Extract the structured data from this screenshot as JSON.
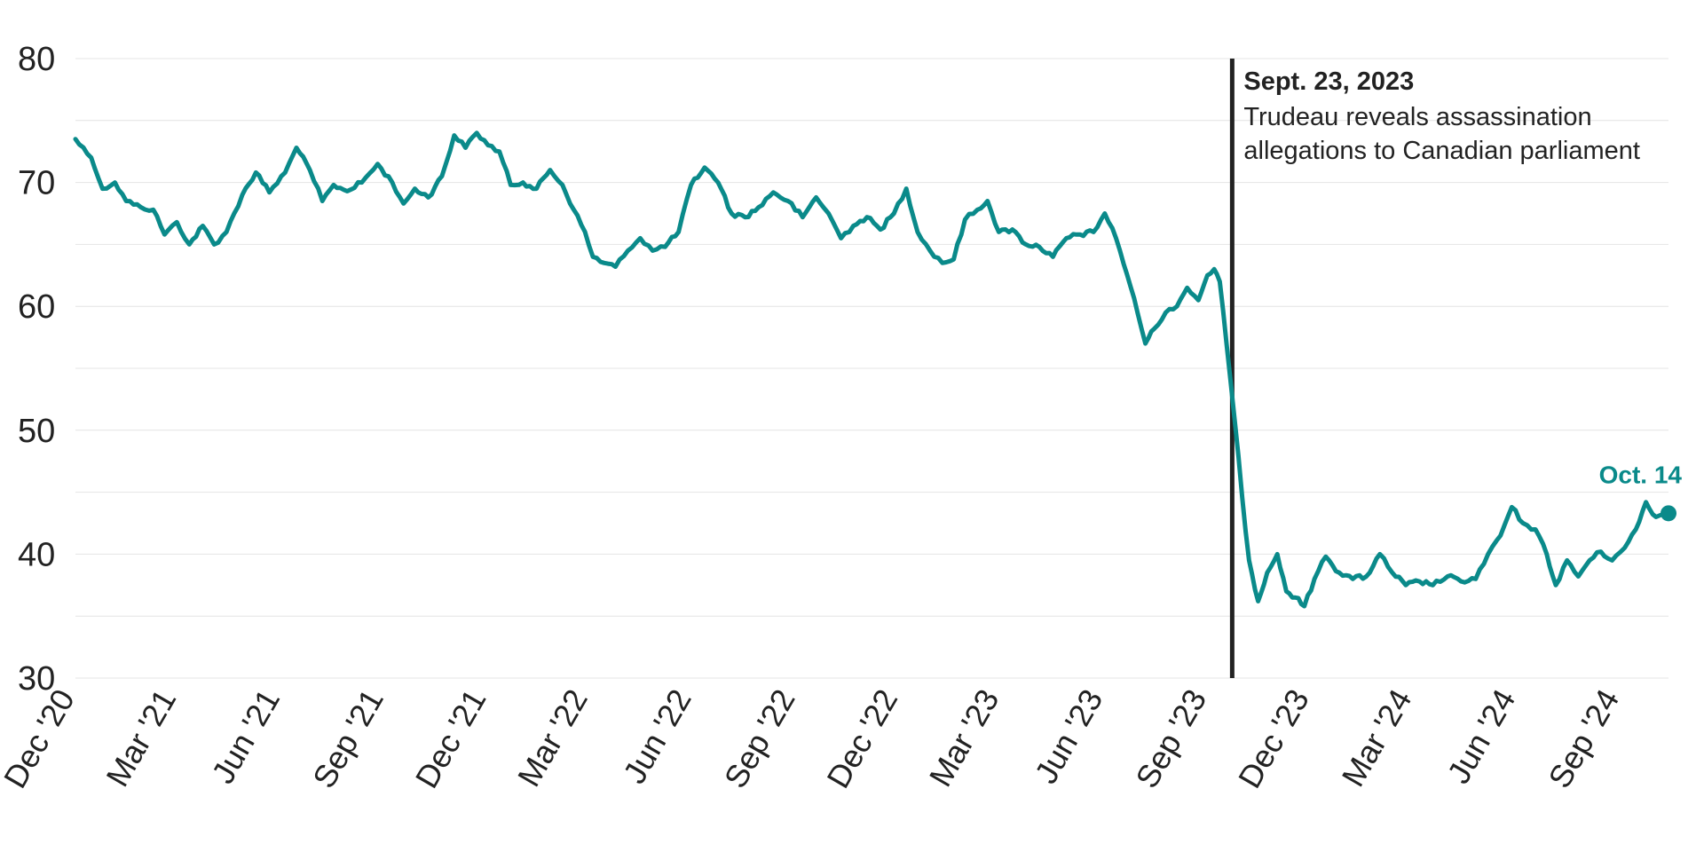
{
  "chart_data": {
    "type": "line",
    "title": "",
    "xlabel": "",
    "ylabel": "",
    "ylim": [
      30,
      80
    ],
    "yticks": [
      30,
      40,
      50,
      60,
      70,
      80
    ],
    "grid": true,
    "line_color": "#0a8a8a",
    "marker_color": "#222222",
    "x_tick_labels": [
      {
        "date": "2020-12-01",
        "label": "Dec '20"
      },
      {
        "date": "2021-03-01",
        "label": "Mar '21"
      },
      {
        "date": "2021-06-01",
        "label": "Jun '21"
      },
      {
        "date": "2021-09-01",
        "label": "Sep '21"
      },
      {
        "date": "2021-12-01",
        "label": "Dec '21"
      },
      {
        "date": "2022-03-01",
        "label": "Mar '22"
      },
      {
        "date": "2022-06-01",
        "label": "Jun '22"
      },
      {
        "date": "2022-09-01",
        "label": "Sep '22"
      },
      {
        "date": "2022-12-01",
        "label": "Dec '22"
      },
      {
        "date": "2023-03-01",
        "label": "Mar '23"
      },
      {
        "date": "2023-06-01",
        "label": "Jun '23"
      },
      {
        "date": "2023-09-01",
        "label": "Sep '23"
      },
      {
        "date": "2023-12-01",
        "label": "Dec '23"
      },
      {
        "date": "2024-03-01",
        "label": "Mar '24"
      },
      {
        "date": "2024-06-01",
        "label": "Jun '24"
      },
      {
        "date": "2024-09-01",
        "label": "Sep '24"
      }
    ],
    "annotation": {
      "date": "2023-09-23",
      "title": "Sept. 23, 2023",
      "lines": [
        "Trudeau reveals assassination",
        "allegations to Canadian parliament"
      ]
    },
    "end_label": {
      "date": "2024-10-14",
      "text": "Oct. 14",
      "value": 43.3
    },
    "series": [
      {
        "points": [
          [
            "2020-12-01",
            73.5
          ],
          [
            "2020-12-15",
            72.0
          ],
          [
            "2020-12-25",
            69.5
          ],
          [
            "2021-01-05",
            70.0
          ],
          [
            "2021-01-15",
            68.5
          ],
          [
            "2021-01-28",
            68.0
          ],
          [
            "2021-02-08",
            67.8
          ],
          [
            "2021-02-18",
            65.8
          ],
          [
            "2021-03-01",
            66.8
          ],
          [
            "2021-03-12",
            65.0
          ],
          [
            "2021-03-24",
            66.5
          ],
          [
            "2021-04-03",
            65.0
          ],
          [
            "2021-04-14",
            66.0
          ],
          [
            "2021-04-28",
            69.0
          ],
          [
            "2021-05-10",
            70.8
          ],
          [
            "2021-05-22",
            69.2
          ],
          [
            "2021-06-05",
            70.8
          ],
          [
            "2021-06-15",
            72.8
          ],
          [
            "2021-06-27",
            71.0
          ],
          [
            "2021-07-08",
            68.5
          ],
          [
            "2021-07-18",
            69.8
          ],
          [
            "2021-07-30",
            69.3
          ],
          [
            "2021-08-12",
            70.0
          ],
          [
            "2021-08-26",
            71.5
          ],
          [
            "2021-09-08",
            70.0
          ],
          [
            "2021-09-18",
            68.3
          ],
          [
            "2021-09-28",
            69.5
          ],
          [
            "2021-10-10",
            68.8
          ],
          [
            "2021-10-22",
            70.5
          ],
          [
            "2021-11-02",
            73.8
          ],
          [
            "2021-11-12",
            72.8
          ],
          [
            "2021-11-22",
            74.0
          ],
          [
            "2021-12-02",
            73.0
          ],
          [
            "2021-12-12",
            72.5
          ],
          [
            "2021-12-22",
            69.8
          ],
          [
            "2022-01-02",
            70.0
          ],
          [
            "2022-01-14",
            69.5
          ],
          [
            "2022-01-26",
            71.0
          ],
          [
            "2022-02-06",
            69.8
          ],
          [
            "2022-02-16",
            67.8
          ],
          [
            "2022-02-26",
            66.0
          ],
          [
            "2022-03-05",
            64.0
          ],
          [
            "2022-03-15",
            63.5
          ],
          [
            "2022-03-25",
            63.2
          ],
          [
            "2022-04-05",
            64.5
          ],
          [
            "2022-04-16",
            65.5
          ],
          [
            "2022-04-27",
            64.5
          ],
          [
            "2022-05-08",
            64.8
          ],
          [
            "2022-05-20",
            66.0
          ],
          [
            "2022-05-31",
            69.8
          ],
          [
            "2022-06-12",
            71.2
          ],
          [
            "2022-06-24",
            70.0
          ],
          [
            "2022-07-06",
            67.5
          ],
          [
            "2022-07-18",
            67.2
          ],
          [
            "2022-07-30",
            68.0
          ],
          [
            "2022-08-12",
            69.2
          ],
          [
            "2022-08-25",
            68.5
          ],
          [
            "2022-09-07",
            67.2
          ],
          [
            "2022-09-19",
            68.8
          ],
          [
            "2022-09-30",
            67.5
          ],
          [
            "2022-10-11",
            65.5
          ],
          [
            "2022-10-22",
            66.5
          ],
          [
            "2022-11-03",
            67.2
          ],
          [
            "2022-11-15",
            66.2
          ],
          [
            "2022-11-27",
            67.5
          ],
          [
            "2022-12-08",
            69.5
          ],
          [
            "2022-12-18",
            66.0
          ],
          [
            "2022-12-29",
            64.5
          ],
          [
            "2023-01-09",
            63.5
          ],
          [
            "2023-01-19",
            63.8
          ],
          [
            "2023-01-29",
            67.0
          ],
          [
            "2023-02-09",
            67.8
          ],
          [
            "2023-02-18",
            68.5
          ],
          [
            "2023-02-28",
            66.0
          ],
          [
            "2023-03-12",
            66.2
          ],
          [
            "2023-03-24",
            65.0
          ],
          [
            "2023-04-05",
            64.8
          ],
          [
            "2023-04-17",
            64.0
          ],
          [
            "2023-04-29",
            65.5
          ],
          [
            "2023-05-11",
            65.8
          ],
          [
            "2023-05-23",
            66.0
          ],
          [
            "2023-06-02",
            67.5
          ],
          [
            "2023-06-12",
            65.5
          ],
          [
            "2023-06-22",
            62.5
          ],
          [
            "2023-07-01",
            59.5
          ],
          [
            "2023-07-08",
            57.0
          ],
          [
            "2023-07-16",
            58.2
          ],
          [
            "2023-07-26",
            59.5
          ],
          [
            "2023-08-05",
            60.0
          ],
          [
            "2023-08-14",
            61.5
          ],
          [
            "2023-08-24",
            60.5
          ],
          [
            "2023-09-01",
            62.5
          ],
          [
            "2023-09-07",
            63.0
          ],
          [
            "2023-09-12",
            62.0
          ],
          [
            "2023-09-18",
            57.0
          ],
          [
            "2023-09-25",
            51.0
          ],
          [
            "2023-10-02",
            44.5
          ],
          [
            "2023-10-08",
            39.5
          ],
          [
            "2023-10-16",
            36.2
          ],
          [
            "2023-10-24",
            38.5
          ],
          [
            "2023-11-02",
            40.0
          ],
          [
            "2023-11-10",
            37.0
          ],
          [
            "2023-11-18",
            36.5
          ],
          [
            "2023-11-26",
            35.8
          ],
          [
            "2023-12-05",
            38.0
          ],
          [
            "2023-12-15",
            39.8
          ],
          [
            "2023-12-27",
            38.5
          ],
          [
            "2024-01-08",
            38.0
          ],
          [
            "2024-01-20",
            38.2
          ],
          [
            "2024-02-01",
            40.0
          ],
          [
            "2024-02-12",
            38.5
          ],
          [
            "2024-02-24",
            37.5
          ],
          [
            "2024-03-07",
            37.8
          ],
          [
            "2024-03-19",
            37.5
          ],
          [
            "2024-04-01",
            38.2
          ],
          [
            "2024-04-13",
            37.8
          ],
          [
            "2024-04-26",
            38.0
          ],
          [
            "2024-05-07",
            40.0
          ],
          [
            "2024-05-18",
            41.5
          ],
          [
            "2024-05-28",
            43.8
          ],
          [
            "2024-06-07",
            42.5
          ],
          [
            "2024-06-18",
            42.0
          ],
          [
            "2024-06-28",
            40.0
          ],
          [
            "2024-07-06",
            37.5
          ],
          [
            "2024-07-16",
            39.5
          ],
          [
            "2024-07-26",
            38.2
          ],
          [
            "2024-08-05",
            39.5
          ],
          [
            "2024-08-15",
            40.2
          ],
          [
            "2024-08-25",
            39.5
          ],
          [
            "2024-09-05",
            40.5
          ],
          [
            "2024-09-15",
            42.0
          ],
          [
            "2024-09-24",
            44.2
          ],
          [
            "2024-10-03",
            43.0
          ],
          [
            "2024-10-14",
            43.3
          ]
        ]
      }
    ]
  }
}
